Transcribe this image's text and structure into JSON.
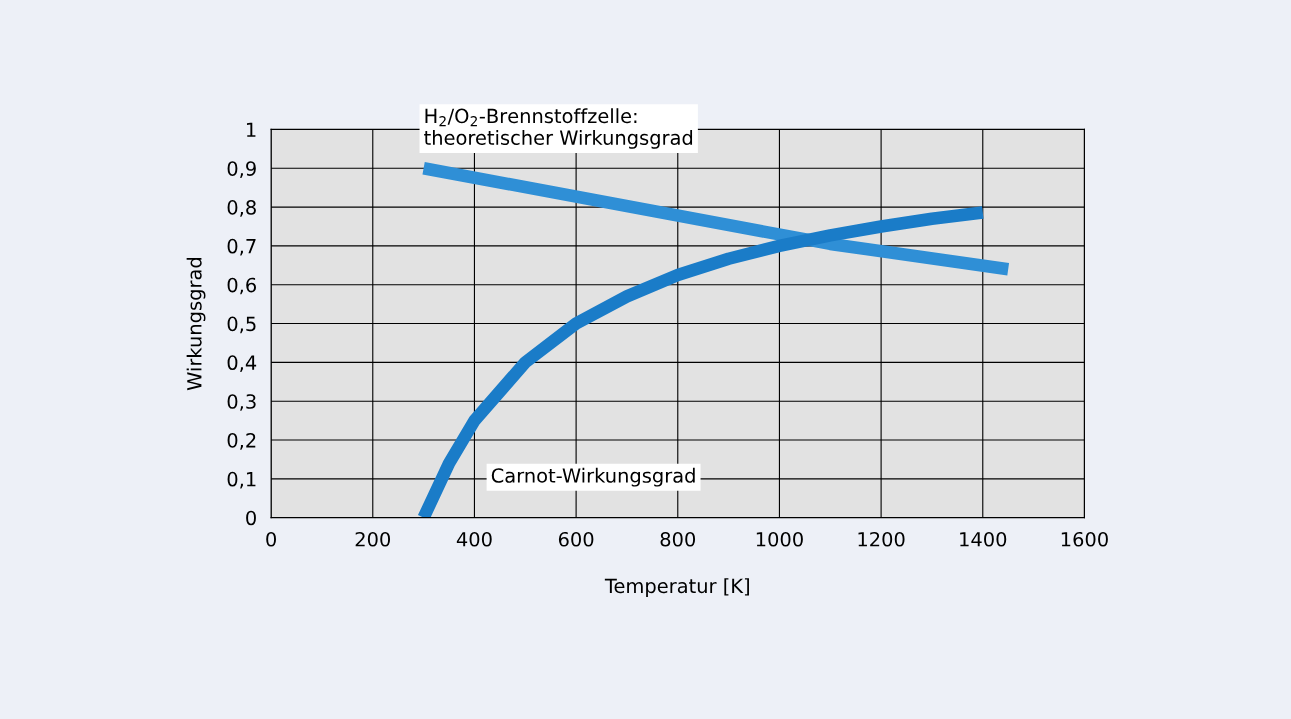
{
  "chart_data": {
    "type": "line",
    "xlabel": "Temperatur [K]",
    "ylabel": "Wirkungsgrad",
    "xlim": [
      0,
      1600
    ],
    "xticks": [
      0,
      200,
      400,
      600,
      800,
      1000,
      1200,
      1400,
      1600
    ],
    "ylim": [
      0,
      1
    ],
    "yticks": [
      0,
      {
        "value": 0.1,
        "label": "0,1"
      },
      {
        "value": 0.2,
        "label": "0,2"
      },
      {
        "value": 0.3,
        "label": "0,3"
      },
      {
        "value": 0.4,
        "label": "0,4"
      },
      {
        "value": 0.5,
        "label": "0,5"
      },
      {
        "value": 0.6,
        "label": "0,6"
      },
      {
        "value": 0.7,
        "label": "0,7"
      },
      {
        "value": 0.8,
        "label": "0,8"
      },
      {
        "value": 0.9,
        "label": "0,9"
      },
      1
    ],
    "grid": true,
    "legend": false,
    "series": [
      {
        "name": "H$_{2}$/O$_{2}$-Brennstoffzelle:\ntheoretischer Wirkungsgrad",
        "color": "#2f8fd6",
        "x": [
          300,
          1100,
          1450
        ],
        "values": [
          0.9,
          0.705,
          0.64
        ]
      },
      {
        "name": "Carnot-Wirkungsgrad",
        "color": "#1a7cc8",
        "x": [
          300,
          350,
          400,
          500,
          600,
          700,
          800,
          900,
          1000,
          1100,
          1200,
          1300,
          1400
        ],
        "values": [
          0,
          0.14,
          0.25,
          0.4,
          0.5,
          0.57,
          0.625,
          0.667,
          0.7,
          0.727,
          0.75,
          0.77,
          0.786
        ]
      }
    ]
  }
}
